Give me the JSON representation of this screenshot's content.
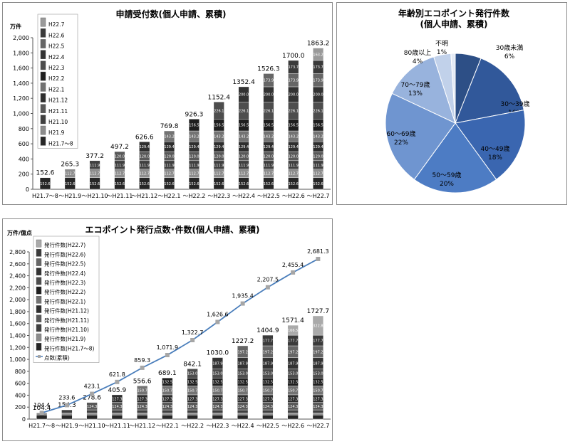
{
  "chart_data": [
    {
      "type": "bar",
      "stacked": true,
      "title": "申請受付数(個人申請、累積)",
      "ylabel": "万件",
      "ylim": [
        0,
        2000
      ],
      "yticks": [
        "0",
        "200",
        "400",
        "600",
        "800",
        "1,000",
        "1,200",
        "1,400",
        "1,600",
        "1,800",
        "2,000"
      ],
      "categories": [
        "H21.7～8",
        "～H21.9",
        "～H21.10",
        "～H21.11",
        "～H21.12",
        "～H22.1",
        "～H22.2",
        "～H22.3",
        "～H22.4",
        "～H22.5",
        "～H22.6",
        "～H22.7"
      ],
      "totals": [
        152.6,
        265.3,
        377.2,
        497.2,
        626.6,
        769.8,
        926.3,
        1152.4,
        1352.4,
        1526.3,
        1700.0,
        1863.2
      ],
      "total_labels": [
        "152.6",
        "265.3",
        "377.2",
        "497.2",
        "626.6",
        "769.8",
        "926.3",
        "1152.4",
        "1352.4",
        "1526.3",
        "1700.0",
        "1863.2"
      ],
      "series": [
        {
          "name": "H21.7～8",
          "values": [
            152.6,
            152.6,
            152.6,
            152.6,
            152.6,
            152.6,
            152.6,
            152.6,
            152.6,
            152.6,
            152.6,
            152.6
          ],
          "color": "#262626"
        },
        {
          "name": "H21.9",
          "values": [
            0,
            112.7,
            112.7,
            112.7,
            112.7,
            112.7,
            112.7,
            112.7,
            112.7,
            112.7,
            112.7,
            112.7
          ],
          "color": "#8c8c8c"
        },
        {
          "name": "H21.10",
          "values": [
            0,
            0,
            111.9,
            111.9,
            111.9,
            111.9,
            111.9,
            111.9,
            111.9,
            111.9,
            111.9,
            111.9
          ],
          "color": "#404040"
        },
        {
          "name": "H21.11",
          "values": [
            0,
            0,
            0,
            120.0,
            120.0,
            120.0,
            120.0,
            120.0,
            120.0,
            120.0,
            120.0,
            120.0
          ],
          "color": "#595959"
        },
        {
          "name": "H21.12",
          "values": [
            0,
            0,
            0,
            0,
            129.4,
            129.4,
            129.4,
            129.4,
            129.4,
            129.4,
            129.4,
            129.4
          ],
          "color": "#2e2e2e"
        },
        {
          "name": "H22.1",
          "values": [
            0,
            0,
            0,
            0,
            0,
            143.2,
            143.2,
            143.2,
            143.2,
            143.2,
            143.2,
            143.2
          ],
          "color": "#737373"
        },
        {
          "name": "H22.2",
          "values": [
            0,
            0,
            0,
            0,
            0,
            0,
            156.5,
            156.5,
            156.5,
            156.5,
            156.5,
            156.5
          ],
          "color": "#1f1f1f"
        },
        {
          "name": "H22.3",
          "values": [
            0,
            0,
            0,
            0,
            0,
            0,
            0,
            226.1,
            226.1,
            226.1,
            226.1,
            226.1
          ],
          "color": "#4d4d4d"
        },
        {
          "name": "H22.4",
          "values": [
            0,
            0,
            0,
            0,
            0,
            0,
            0,
            0,
            200.0,
            200.0,
            200.0,
            200.0
          ],
          "color": "#333333"
        },
        {
          "name": "H22.5",
          "values": [
            0,
            0,
            0,
            0,
            0,
            0,
            0,
            0,
            0,
            173.9,
            173.9,
            173.9
          ],
          "color": "#666666"
        },
        {
          "name": "H22.6",
          "values": [
            0,
            0,
            0,
            0,
            0,
            0,
            0,
            0,
            0,
            0,
            173.7,
            173.7
          ],
          "color": "#3a3a3a"
        },
        {
          "name": "H22.7",
          "values": [
            0,
            0,
            0,
            0,
            0,
            0,
            0,
            0,
            0,
            0,
            0,
            163.2
          ],
          "color": "#999999"
        }
      ],
      "legend": [
        "H22.7",
        "H22.6",
        "H22.5",
        "H22.4",
        "H22.3",
        "H22.2",
        "H22.1",
        "H21.12",
        "H21.11",
        "H21.10",
        "H21.9",
        "H21.7～8"
      ]
    },
    {
      "type": "pie",
      "title": "年齢別エコポイント発行件数",
      "subtitle": "(個人申請、累積)",
      "slices": [
        {
          "label": "30歳未満",
          "value": 6,
          "pct": "6%",
          "color": "#2d4f86"
        },
        {
          "label": "30～39歳",
          "value": 16,
          "pct": "16%",
          "color": "#31589a"
        },
        {
          "label": "40～49歳",
          "value": 18,
          "pct": "18%",
          "color": "#3a66b0"
        },
        {
          "label": "50～59歳",
          "value": 20,
          "pct": "20%",
          "color": "#4d7cc4"
        },
        {
          "label": "60～69歳",
          "value": 22,
          "pct": "22%",
          "color": "#6f95d0"
        },
        {
          "label": "70～79歳",
          "value": 13,
          "pct": "13%",
          "color": "#98b3dd"
        },
        {
          "label": "80歳以上",
          "value": 4,
          "pct": "4%",
          "color": "#c1d1ea"
        },
        {
          "label": "不明",
          "value": 1,
          "pct": "1%",
          "color": "#e3eaf5"
        }
      ]
    },
    {
      "type": "bar+line",
      "stacked": true,
      "title": "エコポイント発行点数･件数(個人申請、累積)",
      "ylabel": "万件/億点",
      "ylim": [
        0,
        2800
      ],
      "yticks": [
        "0",
        "200",
        "400",
        "600",
        "800",
        "1,000",
        "1,200",
        "1,400",
        "1,600",
        "1,800",
        "2,000",
        "2,200",
        "2,400",
        "2,600",
        "2,800"
      ],
      "categories": [
        "H21.7～8",
        "～H21.9",
        "～H21.10",
        "～H21.11",
        "～H21.12",
        "～H22.1",
        "～H22.2",
        "～H22.3",
        "～H22.4",
        "～H22.5",
        "～H22.6",
        "～H22.7"
      ],
      "bar_totals": [
        104.4,
        154.3,
        278.6,
        405.9,
        556.6,
        689.1,
        842.1,
        1030.0,
        1227.2,
        1404.9,
        1571.4,
        1727.7
      ],
      "bar_total_labels": [
        "104.4",
        "154.3",
        "278.6",
        "405.9",
        "556.6",
        "689.1",
        "842.1",
        "1030.0",
        "1227.2",
        "1404.9",
        "1571.4",
        "1727.7"
      ],
      "series": [
        {
          "name": "発行件数(H21.7～8)",
          "values": [
            68.2,
            68.2,
            68.2,
            68.2,
            68.2,
            68.2,
            68.2,
            68.2,
            68.2,
            68.2,
            68.2,
            68.2
          ],
          "color": "#262626"
        },
        {
          "name": "発行件数(H21.9)",
          "values": [
            36.2,
            36.2,
            36.2,
            36.2,
            36.2,
            36.2,
            36.2,
            36.2,
            36.2,
            36.2,
            36.2,
            36.2
          ],
          "color": "#8c8c8c"
        },
        {
          "name": "発行件数(H21.10)",
          "values": [
            0,
            49.9,
            49.9,
            49.9,
            49.9,
            49.9,
            49.9,
            49.9,
            49.9,
            49.9,
            49.9,
            49.9
          ],
          "color": "#404040"
        },
        {
          "name": "発行件数(H21.11)",
          "values": [
            0,
            0,
            124.3,
            124.3,
            124.3,
            124.3,
            124.3,
            124.3,
            124.3,
            124.3,
            124.3,
            124.3
          ],
          "color": "#595959"
        },
        {
          "name": "発行件数(H21.12)",
          "values": [
            0,
            0,
            0,
            127.3,
            127.3,
            127.3,
            127.3,
            127.3,
            127.3,
            127.3,
            127.3,
            127.3
          ],
          "color": "#2e2e2e"
        },
        {
          "name": "発行件数(H22.1)",
          "values": [
            0,
            0,
            0,
            0,
            150.7,
            150.7,
            150.7,
            150.7,
            150.7,
            150.7,
            150.7,
            150.7
          ],
          "color": "#737373"
        },
        {
          "name": "発行件数(H22.2)",
          "values": [
            0,
            0,
            0,
            0,
            0,
            132.5,
            132.5,
            132.5,
            132.5,
            132.5,
            132.5,
            132.5
          ],
          "color": "#1f1f1f"
        },
        {
          "name": "発行件数(H22.3)",
          "values": [
            0,
            0,
            0,
            0,
            0,
            0,
            153.0,
            153.0,
            153.0,
            153.0,
            153.0,
            153.0
          ],
          "color": "#4d4d4d"
        },
        {
          "name": "発行件数(H22.4)",
          "values": [
            0,
            0,
            0,
            0,
            0,
            0,
            0,
            187.9,
            187.9,
            187.9,
            187.9,
            187.9
          ],
          "color": "#333333"
        },
        {
          "name": "発行件数(H22.5)",
          "values": [
            0,
            0,
            0,
            0,
            0,
            0,
            0,
            0,
            197.2,
            197.2,
            197.2,
            197.2
          ],
          "color": "#666666"
        },
        {
          "name": "発行件数(H22.6)",
          "values": [
            0,
            0,
            0,
            0,
            0,
            0,
            0,
            0,
            0,
            177.7,
            177.7,
            177.7
          ],
          "color": "#3a3a3a"
        },
        {
          "name": "発行件数(H22.7)",
          "values": [
            0,
            0,
            0,
            0,
            0,
            0,
            0,
            0,
            0,
            0,
            166.5,
            322.8
          ],
          "color": "#aaaaaa"
        }
      ],
      "line": {
        "name": "点数(累積)",
        "values": [
          104.4,
          233.6,
          423.1,
          621.8,
          859.3,
          1071.9,
          1322.7,
          1626.6,
          1935.4,
          2207.5,
          2455.4,
          2681.3
        ],
        "labels": [
          "104.4",
          "233.6",
          "423.1",
          "621.8",
          "859.3",
          "1,071.9",
          "1,322.7",
          "1,626.6",
          "1,935.4",
          "2,207.5",
          "2,455.4",
          "2,681.3"
        ],
        "color": "#4a7ebb",
        "marker_color": "#a6a6a6"
      },
      "legend": [
        "発行件数(H22.7)",
        "発行件数(H22.6)",
        "発行件数(H22.5)",
        "発行件数(H22.4)",
        "発行件数(H22.3)",
        "発行件数(H22.2)",
        "発行件数(H22.1)",
        "発行件数(H21.12)",
        "発行件数(H21.11)",
        "発行件数(H21.10)",
        "発行件数(H21.9)",
        "発行件数(H21.7～8)",
        "点数(累積)"
      ]
    }
  ]
}
